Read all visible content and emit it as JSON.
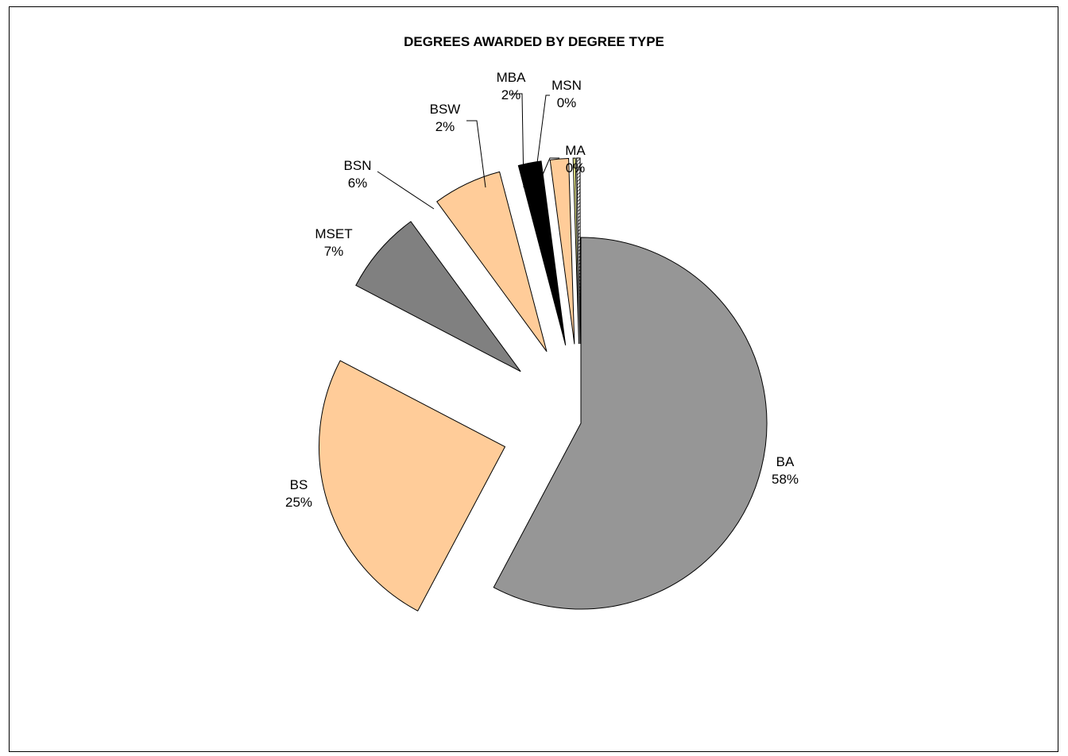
{
  "chart_data": {
    "type": "pie",
    "title": "DEGREES AWARDED BY DEGREE TYPE",
    "slices": [
      {
        "name": "BA",
        "percent_label": "58%",
        "value": 58.0,
        "color": "#969696",
        "pattern": "none"
      },
      {
        "name": "BS",
        "percent_label": "25%",
        "value": 25.0,
        "color": "#FFCC99",
        "pattern": "none"
      },
      {
        "name": "MSET",
        "percent_label": "7%",
        "value": 7.3,
        "color": "#808080",
        "pattern": "none"
      },
      {
        "name": "BSN",
        "percent_label": "6%",
        "value": 6.0,
        "color": "#FFCC99",
        "pattern": "none"
      },
      {
        "name": "BSW",
        "percent_label": "2%",
        "value": 2.0,
        "color": "#000000",
        "pattern": "none"
      },
      {
        "name": "MBA",
        "percent_label": "2%",
        "value": 1.6,
        "color": "#FFCC99",
        "pattern": "none"
      },
      {
        "name": "MSN",
        "percent_label": "0%",
        "value": 0.2,
        "color": "#FFFF99",
        "pattern": "none"
      },
      {
        "name": "MA",
        "percent_label": "0%",
        "value": 0.3,
        "color": "#FFFFFF",
        "pattern": "hatch"
      }
    ],
    "start_angle": "12 o'clock",
    "direction": "clockwise",
    "exploded": true,
    "legend": "none"
  }
}
